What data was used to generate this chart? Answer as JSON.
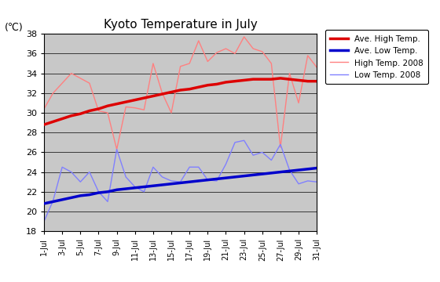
{
  "title": "Kyoto Temperature in July",
  "ylabel": "(℃)",
  "ylim": [
    18,
    38
  ],
  "yticks": [
    18,
    20,
    22,
    24,
    26,
    28,
    30,
    32,
    34,
    36,
    38
  ],
  "days": [
    1,
    2,
    3,
    4,
    5,
    6,
    7,
    8,
    9,
    10,
    11,
    12,
    13,
    14,
    15,
    16,
    17,
    18,
    19,
    20,
    21,
    22,
    23,
    24,
    25,
    26,
    27,
    28,
    29,
    30,
    31
  ],
  "xtick_labels": [
    "1-Jul",
    "3-Jul",
    "5-Jul",
    "7-Jul",
    "9-Jul",
    "11-Jul",
    "13-Jul",
    "15-Jul",
    "17-Jul",
    "19-Jul",
    "21-Jul",
    "23-Jul",
    "25-Jul",
    "27-Jul",
    "29-Jul",
    "31-Jul"
  ],
  "xtick_positions": [
    1,
    3,
    5,
    7,
    9,
    11,
    13,
    15,
    17,
    19,
    21,
    23,
    25,
    27,
    29,
    31
  ],
  "ave_high": [
    28.8,
    29.1,
    29.4,
    29.7,
    29.9,
    30.2,
    30.4,
    30.7,
    30.9,
    31.1,
    31.3,
    31.5,
    31.7,
    31.9,
    32.1,
    32.3,
    32.4,
    32.6,
    32.8,
    32.9,
    33.1,
    33.2,
    33.3,
    33.4,
    33.4,
    33.4,
    33.5,
    33.4,
    33.3,
    33.2,
    33.2
  ],
  "ave_low": [
    20.8,
    21.0,
    21.2,
    21.4,
    21.6,
    21.7,
    21.9,
    22.0,
    22.2,
    22.3,
    22.4,
    22.5,
    22.6,
    22.7,
    22.8,
    22.9,
    23.0,
    23.1,
    23.2,
    23.3,
    23.4,
    23.5,
    23.6,
    23.7,
    23.8,
    23.9,
    24.0,
    24.1,
    24.2,
    24.3,
    24.4
  ],
  "high_2008": [
    30.4,
    32.0,
    33.0,
    34.0,
    33.5,
    33.0,
    30.2,
    30.0,
    26.3,
    30.6,
    30.5,
    30.3,
    35.0,
    32.0,
    30.0,
    34.7,
    35.0,
    37.3,
    35.2,
    36.1,
    36.5,
    36.0,
    37.7,
    36.5,
    36.2,
    35.0,
    26.5,
    34.0,
    31.0,
    35.8,
    34.6
  ],
  "low_2008": [
    19.0,
    21.1,
    24.5,
    24.0,
    23.0,
    24.0,
    22.0,
    21.0,
    26.3,
    23.5,
    22.5,
    22.0,
    24.5,
    23.5,
    23.1,
    23.0,
    24.5,
    24.5,
    23.2,
    23.1,
    24.8,
    27.0,
    27.2,
    25.7,
    26.0,
    25.2,
    26.8,
    24.2,
    22.8,
    23.1,
    23.0
  ],
  "ave_high_color": "#dd0000",
  "ave_low_color": "#0000cc",
  "high_2008_color": "#ff8080",
  "low_2008_color": "#8080ff",
  "bg_color": "#c8c8c8",
  "legend_labels": [
    "Ave. High Temp.",
    "Ave. Low Temp.",
    "High Temp. 2008",
    "Low Temp. 2008"
  ],
  "fig_width": 5.6,
  "fig_height": 3.6,
  "dpi": 100
}
